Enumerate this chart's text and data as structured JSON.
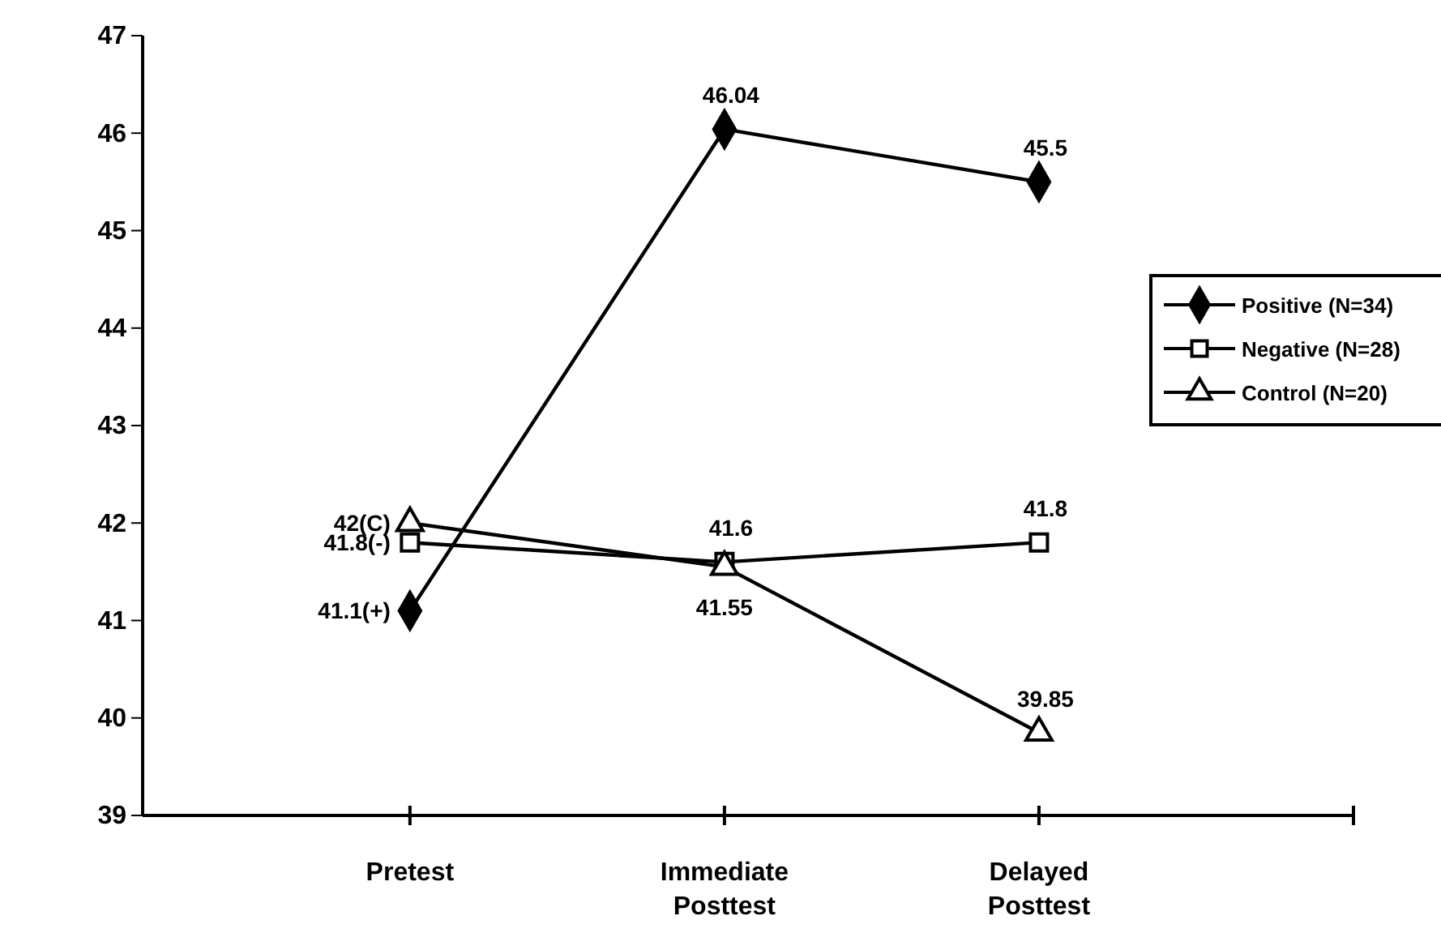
{
  "chart_data": {
    "type": "line",
    "categories": [
      "Pretest",
      "Immediate Posttest",
      "Delayed Posttest"
    ],
    "ylim": [
      39,
      47
    ],
    "yticks": [
      39,
      40,
      41,
      42,
      43,
      44,
      45,
      46,
      47
    ],
    "grid": false,
    "legend": "right",
    "line_style": "solid",
    "series": [
      {
        "name": "Positive (N=34)",
        "color": "#000000",
        "marker": "diamond",
        "values": [
          41.1,
          46.04,
          45.5
        ],
        "value_labels": [
          "41.1(+)",
          "46.04",
          "45.5"
        ]
      },
      {
        "name": "Negative (N=28)",
        "color": "#000000",
        "marker": "square",
        "values": [
          41.8,
          41.6,
          41.8
        ],
        "value_labels": [
          "41.8(-)",
          "41.6",
          "41.8"
        ]
      },
      {
        "name": "Control (N=20)",
        "color": "#000000",
        "marker": "triangle",
        "values": [
          42,
          41.55,
          39.85
        ],
        "value_labels": [
          "42(C)",
          "41.55",
          "39.85"
        ]
      }
    ]
  }
}
